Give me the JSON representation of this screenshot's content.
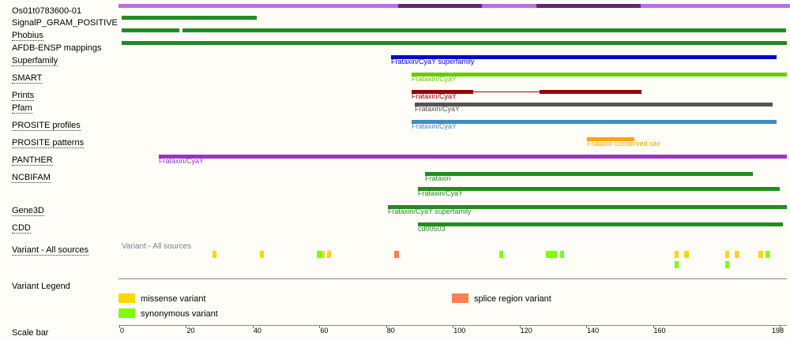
{
  "protein_id": "Os01t0783600-01",
  "tracks": {
    "signalp": "SignalP_GRAM_POSITIVE",
    "phobius": "Phobius",
    "afdb": "AFDB-ENSP mappings",
    "superfamily": "Superfamily",
    "smart": "SMART",
    "prints": "Prints",
    "pfam": "Pfam",
    "prosite_profiles": "PROSITE profiles",
    "prosite_patterns": "PROSITE patterns",
    "panther": "PANTHER",
    "ncbifam": "NCBIFAM",
    "gene3d": "Gene3D",
    "cdd": "CDD",
    "variant_all": "Variant - All sources",
    "variant_legend": "Variant Legend",
    "scale_bar": "Scale bar"
  },
  "features": {
    "superfamily": "Frataxin/CyaY superfamily",
    "smart": "Frataxin/CyaY",
    "prints": "Frataxin/CyaY",
    "pfam": "Frataxin/CyaY",
    "prosite_profiles": "Frataxin/CyaY",
    "prosite_patterns": "Frataxin conserved site",
    "panther": "Frataxin/CyaY",
    "ncbifam_1": "Frataxin",
    "ncbifam_2": "Frataxin/CyaY",
    "gene3d": "Frataxin/CyaY superfamily",
    "cdd": "cd00503"
  },
  "variant_track_caption": "Variant - All sources",
  "legend": {
    "missense": "missense variant",
    "synonymous": "synonymous variant",
    "splice": "splice region variant"
  },
  "colors": {
    "missense": "#ffd700",
    "synonymous": "#7fff00",
    "splice": "#ff7f50",
    "green": "#228b22",
    "blue": "#0000cd",
    "smart": "#66cc00",
    "prints": "#990000",
    "pfam": "#555555",
    "prosite": "#3e8ec0",
    "patterns": "#ffa500",
    "panther": "#9932cc"
  },
  "scale_ticks": [
    "0",
    "20",
    "40",
    "60",
    "80",
    "100",
    "120",
    "140",
    "160",
    "198"
  ]
}
